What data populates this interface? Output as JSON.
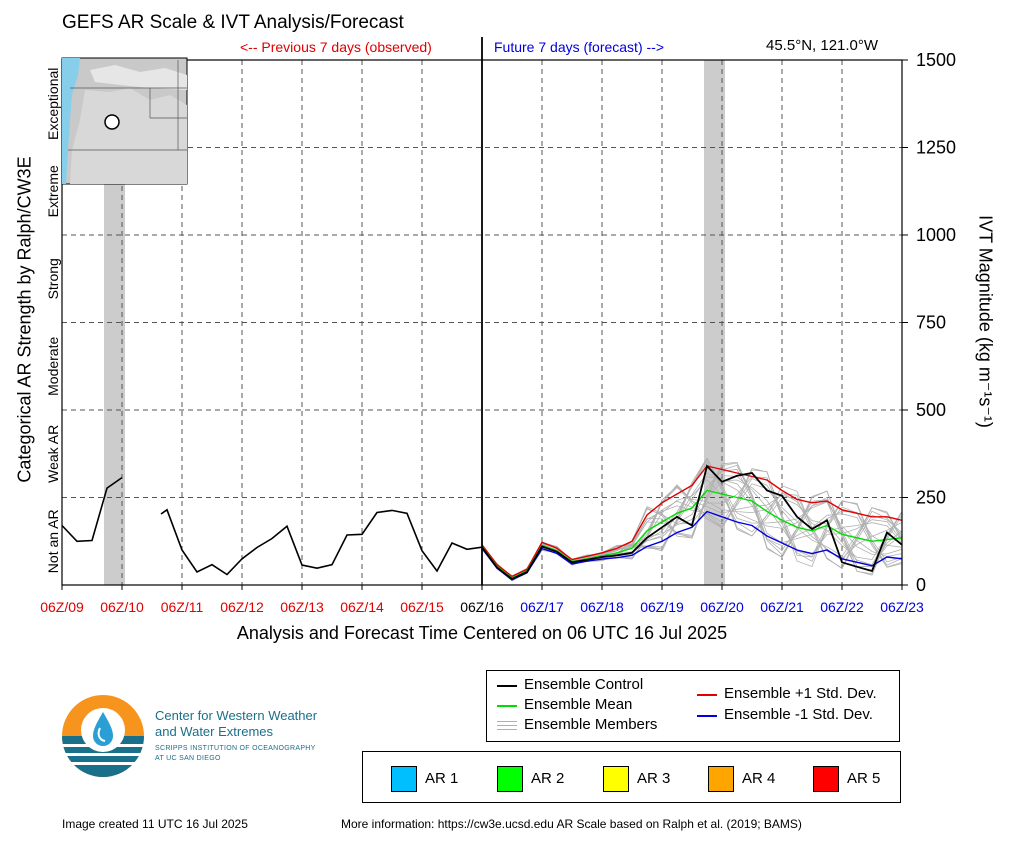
{
  "header": {
    "title": "GEFS AR Scale & IVT Analysis/Forecast",
    "previous_label": "<-- Previous 7 days (observed)",
    "future_label": "Future 7 days (forecast) -->",
    "location": "45.5°N, 121.0°W"
  },
  "colors": {
    "observed": "#e00000",
    "forecast": "#0000dd",
    "control": "#000000",
    "mean": "#00dd00",
    "plus_std": "#e00000",
    "minus_std": "#0000dd",
    "members": "#b0b0b0",
    "shading": "#cccccc"
  },
  "chart_data": {
    "type": "line",
    "title": "GEFS AR Scale & IVT Analysis/Forecast",
    "xlabel": "Analysis and Forecast Time Centered on 06 UTC 16 Jul 2025",
    "ylabel_left": "Categorical AR Strength by Ralph/CW3E",
    "ylabel_right": "IVT Magnitude (kg m⁻¹s⁻¹)",
    "x_ticks": [
      "06Z/09",
      "06Z/10",
      "06Z/11",
      "06Z/12",
      "06Z/13",
      "06Z/14",
      "06Z/15",
      "06Z/16",
      "06Z/17",
      "06Z/18",
      "06Z/19",
      "06Z/20",
      "06Z/21",
      "06Z/22",
      "06Z/23"
    ],
    "x_tick_status": [
      "observed",
      "observed",
      "observed",
      "observed",
      "observed",
      "observed",
      "observed",
      "current",
      "forecast",
      "forecast",
      "forecast",
      "forecast",
      "forecast",
      "forecast",
      "forecast"
    ],
    "xlim_days_from_06Z09": [
      0,
      14
    ],
    "y_ticks": [
      0,
      250,
      500,
      750,
      1000,
      1250,
      1500
    ],
    "ylim": [
      0,
      1500
    ],
    "categories": [
      "Not an AR",
      "Weak AR",
      "Moderate",
      "Strong",
      "Extreme",
      "Exceptional"
    ],
    "shaded_periods": [
      [
        0.7,
        1.05
      ],
      [
        10.7,
        11.05
      ]
    ],
    "grid": true,
    "observed_ivt": [
      [
        [
          0,
          170
        ],
        [
          0.25,
          125
        ],
        [
          0.5,
          127
        ],
        [
          0.75,
          277
        ],
        [
          1.0,
          307
        ]
      ],
      [
        [
          1.65,
          203
        ],
        [
          1.75,
          215
        ],
        [
          2.0,
          100
        ],
        [
          2.25,
          37
        ],
        [
          2.5,
          58
        ],
        [
          2.75,
          30
        ],
        [
          3.0,
          75
        ],
        [
          3.25,
          107
        ],
        [
          3.5,
          133
        ],
        [
          3.75,
          168
        ],
        [
          4.0,
          57
        ],
        [
          4.25,
          48
        ],
        [
          4.5,
          58
        ],
        [
          4.75,
          143
        ],
        [
          5.0,
          145
        ],
        [
          5.25,
          207
        ],
        [
          5.5,
          213
        ],
        [
          5.75,
          205
        ],
        [
          6.0,
          98
        ],
        [
          6.25,
          40
        ],
        [
          6.5,
          120
        ],
        [
          6.75,
          102
        ],
        [
          7.0,
          108
        ]
      ]
    ],
    "series": [
      {
        "name": "Ensemble Control",
        "x": [
          7.0,
          7.25,
          7.5,
          7.75,
          8.0,
          8.25,
          8.5,
          8.75,
          9.0,
          9.25,
          9.5,
          9.75,
          10.0,
          10.25,
          10.5,
          10.75,
          11.0,
          11.25,
          11.5,
          11.75,
          12.0,
          12.25,
          12.5,
          12.75,
          13.0,
          13.25,
          13.5,
          13.75,
          14.0
        ],
        "values": [
          108,
          50,
          17,
          37,
          110,
          95,
          65,
          72,
          80,
          85,
          92,
          135,
          165,
          195,
          170,
          340,
          295,
          312,
          320,
          270,
          255,
          195,
          160,
          185,
          65,
          52,
          40,
          150,
          115
        ]
      },
      {
        "name": "Ensemble Mean",
        "x": [
          7.0,
          7.25,
          7.5,
          7.75,
          8.0,
          8.25,
          8.5,
          8.75,
          9.0,
          9.25,
          9.5,
          9.75,
          10.0,
          10.25,
          10.5,
          10.75,
          11.0,
          11.25,
          11.5,
          11.75,
          12.0,
          12.25,
          12.5,
          12.75,
          13.0,
          13.25,
          13.5,
          13.75,
          14.0
        ],
        "values": [
          110,
          53,
          20,
          40,
          113,
          98,
          67,
          75,
          83,
          92,
          105,
          155,
          180,
          205,
          220,
          270,
          260,
          250,
          240,
          210,
          185,
          165,
          155,
          170,
          145,
          135,
          125,
          130,
          135
        ]
      },
      {
        "name": "Ensemble +1 Std. Dev.",
        "x": [
          7.0,
          7.25,
          7.5,
          7.75,
          8.0,
          8.25,
          8.5,
          8.75,
          9.0,
          9.25,
          9.5,
          9.75,
          10.0,
          10.25,
          10.5,
          10.75,
          11.0,
          11.25,
          11.5,
          11.75,
          12.0,
          12.25,
          12.5,
          12.75,
          13.0,
          13.25,
          13.5,
          13.75,
          14.0
        ],
        "values": [
          115,
          58,
          25,
          45,
          122,
          105,
          73,
          82,
          92,
          105,
          125,
          200,
          235,
          260,
          285,
          340,
          330,
          320,
          310,
          300,
          270,
          245,
          235,
          240,
          215,
          205,
          195,
          195,
          185
        ]
      },
      {
        "name": "Ensemble -1 Std. Dev.",
        "x": [
          7.0,
          7.25,
          7.5,
          7.75,
          8.0,
          8.25,
          8.5,
          8.75,
          9.0,
          9.25,
          9.5,
          9.75,
          10.0,
          10.25,
          10.5,
          10.75,
          11.0,
          11.25,
          11.5,
          11.75,
          12.0,
          12.25,
          12.5,
          12.75,
          13.0,
          13.25,
          13.5,
          13.75,
          14.0
        ],
        "values": [
          105,
          48,
          15,
          35,
          104,
          90,
          60,
          68,
          74,
          78,
          85,
          110,
          125,
          150,
          165,
          210,
          195,
          180,
          170,
          140,
          120,
          100,
          90,
          100,
          75,
          65,
          55,
          80,
          75
        ]
      }
    ],
    "legend": [
      "Ensemble Control",
      "Ensemble Mean",
      "Ensemble Members",
      "Ensemble +1 Std. Dev.",
      "Ensemble -1 Std. Dev."
    ],
    "ar_scale_legend": [
      {
        "label": "AR 1",
        "color": "#00bfff"
      },
      {
        "label": "AR 2",
        "color": "#00ff00"
      },
      {
        "label": "AR 3",
        "color": "#ffff00"
      },
      {
        "label": "AR 4",
        "color": "#ffa500"
      },
      {
        "label": "AR 5",
        "color": "#ff0000"
      }
    ]
  },
  "logo": {
    "line1": "Center for Western Weather",
    "line2": "and Water Extremes",
    "line3": "SCRIPPS INSTITUTION OF OCEANOGRAPHY",
    "line4": "AT UC SAN DIEGO"
  },
  "footer": {
    "created": "Image created 11 UTC 16 Jul 2025",
    "info": "More information: https://cw3e.ucsd.edu AR Scale based on Ralph et al. (2019; BAMS)"
  }
}
